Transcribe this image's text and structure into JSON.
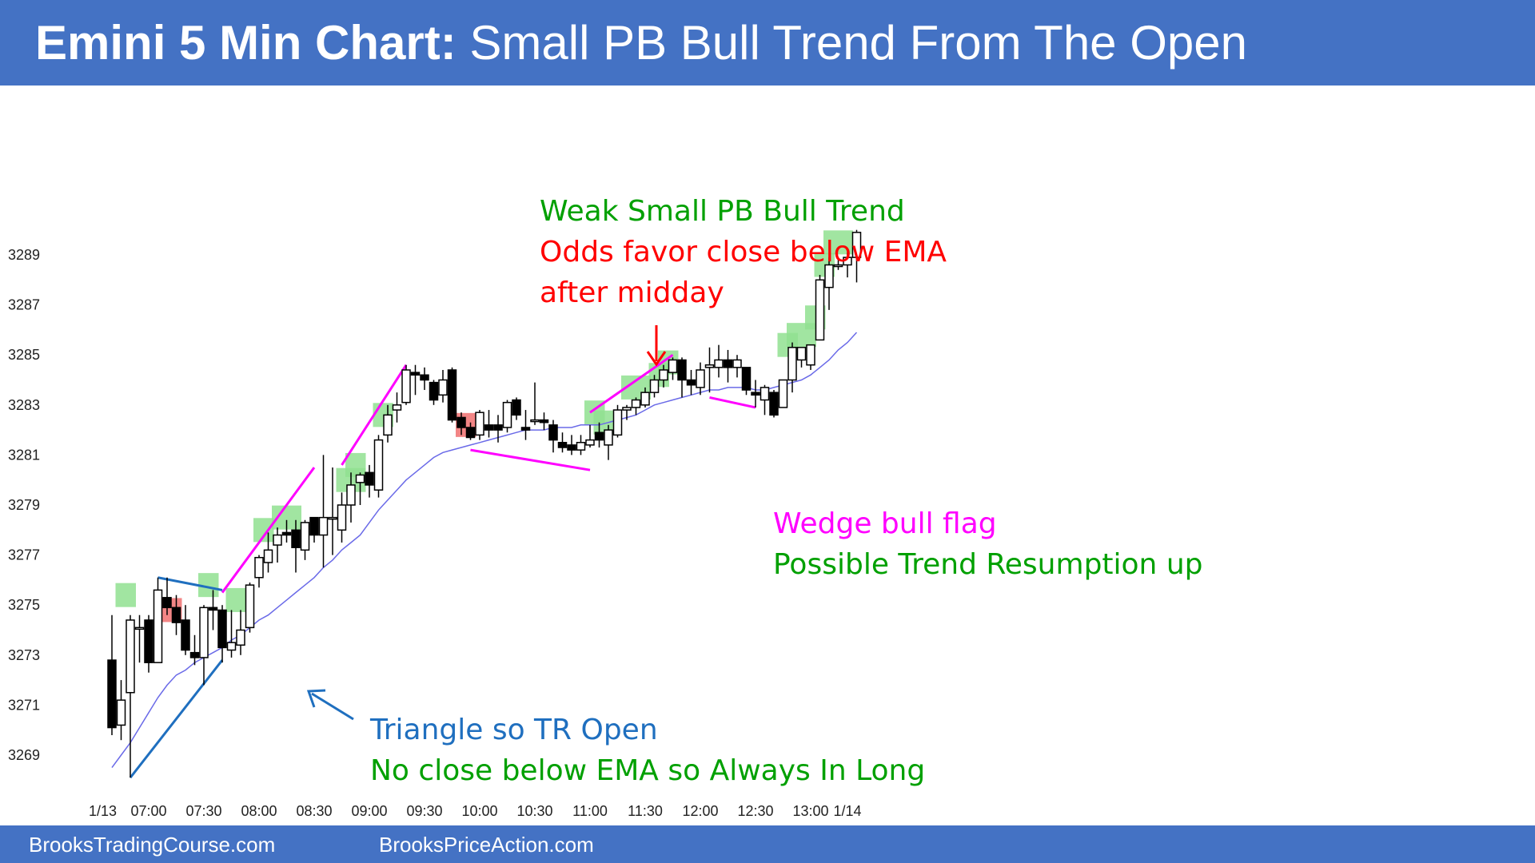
{
  "header": {
    "title_bold": "Emini 5 Min Chart:",
    "title_rest": "Small PB Bull Trend From The Open"
  },
  "footer": {
    "link1": "BrooksTradingCourse.com",
    "link2": "BrooksPriceAction.com"
  },
  "colors": {
    "bar_blue": "#4472c4",
    "bull_trend_text": "#00a000",
    "warn_text": "#ff0000",
    "wedge": "#ff00ff",
    "triangle": "#1f6fbf",
    "ema": "#6a6ae8",
    "green_box": "#90e090",
    "red_box": "#f07070"
  },
  "chart_data": {
    "type": "candlestick",
    "title": "Emini 5 Min Chart: Small PB Bull Trend From The Open",
    "xlabel": "",
    "ylabel": "",
    "x_tick_labels": [
      "1/13",
      "07:00",
      "07:30",
      "08:00",
      "08:30",
      "09:00",
      "09:30",
      "10:00",
      "10:30",
      "11:00",
      "11:30",
      "12:00",
      "12:30",
      "13:00",
      "1/14"
    ],
    "x_tick_bar_index": [
      -1,
      4,
      10,
      16,
      22,
      28,
      34,
      40,
      46,
      52,
      58,
      64,
      70,
      76,
      80
    ],
    "y_ticks": [
      3269,
      3271,
      3273,
      3275,
      3277,
      3279,
      3281,
      3283,
      3285,
      3287,
      3289
    ],
    "ylim": [
      3267.5,
      3290.5
    ],
    "grid": false,
    "bars": [
      {
        "o": 3272.8,
        "h": 3274.6,
        "l": 3269.8,
        "c": 3270.1
      },
      {
        "o": 3270.2,
        "h": 3272.0,
        "l": 3269.6,
        "c": 3271.2
      },
      {
        "o": 3271.5,
        "h": 3274.6,
        "l": 3268.1,
        "c": 3274.4
      },
      {
        "o": 3274.1,
        "h": 3274.6,
        "l": 3272.7,
        "c": 3274.1
      },
      {
        "o": 3274.4,
        "h": 3274.6,
        "l": 3272.3,
        "c": 3272.7
      },
      {
        "o": 3272.7,
        "h": 3276.1,
        "l": 3272.7,
        "c": 3275.6
      },
      {
        "o": 3275.3,
        "h": 3276.1,
        "l": 3274.6,
        "c": 3274.9
      },
      {
        "o": 3274.9,
        "h": 3275.4,
        "l": 3273.8,
        "c": 3274.3
      },
      {
        "o": 3274.4,
        "h": 3275.0,
        "l": 3273.0,
        "c": 3273.2
      },
      {
        "o": 3273.1,
        "h": 3273.8,
        "l": 3272.6,
        "c": 3272.9
      },
      {
        "o": 3272.9,
        "h": 3275.0,
        "l": 3271.8,
        "c": 3274.9
      },
      {
        "o": 3274.9,
        "h": 3275.6,
        "l": 3274.0,
        "c": 3274.8
      },
      {
        "o": 3274.8,
        "h": 3275.0,
        "l": 3272.7,
        "c": 3273.3
      },
      {
        "o": 3273.2,
        "h": 3274.8,
        "l": 3272.9,
        "c": 3273.5
      },
      {
        "o": 3273.4,
        "h": 3274.8,
        "l": 3273.0,
        "c": 3274.0
      },
      {
        "o": 3274.1,
        "h": 3275.9,
        "l": 3273.9,
        "c": 3275.8
      },
      {
        "o": 3276.1,
        "h": 3277.0,
        "l": 3275.7,
        "c": 3276.9
      },
      {
        "o": 3276.7,
        "h": 3277.9,
        "l": 3276.3,
        "c": 3277.2
      },
      {
        "o": 3277.4,
        "h": 3278.1,
        "l": 3276.7,
        "c": 3277.8
      },
      {
        "o": 3277.9,
        "h": 3278.4,
        "l": 3277.5,
        "c": 3277.8
      },
      {
        "o": 3278.0,
        "h": 3278.4,
        "l": 3276.3,
        "c": 3277.3
      },
      {
        "o": 3277.2,
        "h": 3278.4,
        "l": 3276.8,
        "c": 3278.3
      },
      {
        "o": 3278.5,
        "h": 3278.5,
        "l": 3277.5,
        "c": 3277.8
      },
      {
        "o": 3277.8,
        "h": 3281.0,
        "l": 3276.5,
        "c": 3278.5
      },
      {
        "o": 3278.5,
        "h": 3280.5,
        "l": 3277.0,
        "c": 3278.5
      },
      {
        "o": 3278.0,
        "h": 3279.5,
        "l": 3277.5,
        "c": 3279.0
      },
      {
        "o": 3279.0,
        "h": 3280.3,
        "l": 3278.3,
        "c": 3279.8
      },
      {
        "o": 3279.9,
        "h": 3280.3,
        "l": 3279.0,
        "c": 3280.2
      },
      {
        "o": 3280.3,
        "h": 3280.6,
        "l": 3279.3,
        "c": 3279.8
      },
      {
        "o": 3279.6,
        "h": 3281.8,
        "l": 3279.3,
        "c": 3281.6
      },
      {
        "o": 3281.8,
        "h": 3283.0,
        "l": 3281.5,
        "c": 3282.6
      },
      {
        "o": 3282.8,
        "h": 3283.5,
        "l": 3282.3,
        "c": 3283.0
      },
      {
        "o": 3283.1,
        "h": 3284.6,
        "l": 3283.0,
        "c": 3284.4
      },
      {
        "o": 3284.3,
        "h": 3284.6,
        "l": 3283.4,
        "c": 3284.2
      },
      {
        "o": 3284.2,
        "h": 3284.5,
        "l": 3283.6,
        "c": 3284.0
      },
      {
        "o": 3283.9,
        "h": 3284.0,
        "l": 3283.0,
        "c": 3283.2
      },
      {
        "o": 3283.4,
        "h": 3284.4,
        "l": 3283.1,
        "c": 3284.0
      },
      {
        "o": 3284.4,
        "h": 3284.5,
        "l": 3282.3,
        "c": 3282.4
      },
      {
        "o": 3282.5,
        "h": 3282.7,
        "l": 3281.8,
        "c": 3282.1
      },
      {
        "o": 3282.1,
        "h": 3282.3,
        "l": 3281.6,
        "c": 3281.7
      },
      {
        "o": 3281.8,
        "h": 3282.8,
        "l": 3281.6,
        "c": 3282.7
      },
      {
        "o": 3282.2,
        "h": 3282.8,
        "l": 3281.7,
        "c": 3282.0
      },
      {
        "o": 3282.2,
        "h": 3282.6,
        "l": 3281.5,
        "c": 3282.0
      },
      {
        "o": 3282.1,
        "h": 3283.2,
        "l": 3281.9,
        "c": 3283.1
      },
      {
        "o": 3283.2,
        "h": 3283.3,
        "l": 3282.4,
        "c": 3282.6
      },
      {
        "o": 3282.1,
        "h": 3282.8,
        "l": 3281.6,
        "c": 3282.0
      },
      {
        "o": 3282.4,
        "h": 3283.9,
        "l": 3282.2,
        "c": 3282.4
      },
      {
        "o": 3282.4,
        "h": 3282.7,
        "l": 3282.0,
        "c": 3282.3
      },
      {
        "o": 3282.2,
        "h": 3282.4,
        "l": 3281.1,
        "c": 3281.6
      },
      {
        "o": 3281.5,
        "h": 3281.9,
        "l": 3281.1,
        "c": 3281.3
      },
      {
        "o": 3281.4,
        "h": 3281.8,
        "l": 3281.0,
        "c": 3281.2
      },
      {
        "o": 3281.2,
        "h": 3281.8,
        "l": 3281.0,
        "c": 3281.5
      },
      {
        "o": 3281.4,
        "h": 3282.2,
        "l": 3281.3,
        "c": 3281.6
      },
      {
        "o": 3281.9,
        "h": 3282.3,
        "l": 3281.3,
        "c": 3281.6
      },
      {
        "o": 3281.4,
        "h": 3282.2,
        "l": 3280.8,
        "c": 3282.0
      },
      {
        "o": 3281.8,
        "h": 3283.0,
        "l": 3281.7,
        "c": 3282.8
      },
      {
        "o": 3282.8,
        "h": 3283.0,
        "l": 3282.4,
        "c": 3282.9
      },
      {
        "o": 3282.9,
        "h": 3283.3,
        "l": 3282.6,
        "c": 3283.2
      },
      {
        "o": 3283.0,
        "h": 3283.7,
        "l": 3282.9,
        "c": 3283.5
      },
      {
        "o": 3283.5,
        "h": 3284.2,
        "l": 3283.3,
        "c": 3284.0
      },
      {
        "o": 3284.0,
        "h": 3284.6,
        "l": 3283.7,
        "c": 3284.4
      },
      {
        "o": 3284.3,
        "h": 3284.9,
        "l": 3284.0,
        "c": 3284.8
      },
      {
        "o": 3284.8,
        "h": 3284.9,
        "l": 3283.3,
        "c": 3284.0
      },
      {
        "o": 3284.0,
        "h": 3284.4,
        "l": 3283.4,
        "c": 3283.8
      },
      {
        "o": 3283.7,
        "h": 3284.7,
        "l": 3283.4,
        "c": 3284.4
      },
      {
        "o": 3284.5,
        "h": 3285.3,
        "l": 3283.5,
        "c": 3284.6
      },
      {
        "o": 3284.5,
        "h": 3285.4,
        "l": 3284.1,
        "c": 3284.8
      },
      {
        "o": 3284.8,
        "h": 3285.2,
        "l": 3283.9,
        "c": 3284.5
      },
      {
        "o": 3284.5,
        "h": 3285.0,
        "l": 3284.1,
        "c": 3284.8
      },
      {
        "o": 3284.5,
        "h": 3284.5,
        "l": 3283.4,
        "c": 3283.6
      },
      {
        "o": 3283.5,
        "h": 3284.0,
        "l": 3282.9,
        "c": 3283.4
      },
      {
        "o": 3283.2,
        "h": 3283.8,
        "l": 3282.6,
        "c": 3283.7
      },
      {
        "o": 3283.5,
        "h": 3283.6,
        "l": 3282.5,
        "c": 3282.6
      },
      {
        "o": 3282.9,
        "h": 3284.0,
        "l": 3282.9,
        "c": 3284.0
      },
      {
        "o": 3284.0,
        "h": 3285.5,
        "l": 3283.5,
        "c": 3285.3
      },
      {
        "o": 3284.8,
        "h": 3285.3,
        "l": 3284.5,
        "c": 3285.3
      },
      {
        "o": 3284.6,
        "h": 3285.4,
        "l": 3284.4,
        "c": 3285.4
      },
      {
        "o": 3285.6,
        "h": 3288.2,
        "l": 3285.6,
        "c": 3288.0
      },
      {
        "o": 3287.7,
        "h": 3288.9,
        "l": 3286.8,
        "c": 3288.6
      },
      {
        "o": 3288.6,
        "h": 3288.8,
        "l": 3288.4,
        "c": 3288.6
      },
      {
        "o": 3288.6,
        "h": 3289.1,
        "l": 3288.1,
        "c": 3288.9
      },
      {
        "o": 3288.9,
        "h": 3290.0,
        "l": 3287.9,
        "c": 3289.9
      }
    ],
    "ema": [
      3268.5,
      3269.0,
      3269.5,
      3270.1,
      3270.7,
      3271.3,
      3271.8,
      3272.2,
      3272.4,
      3272.7,
      3272.9,
      3273.1,
      3273.3,
      3273.6,
      3273.8,
      3274.1,
      3274.4,
      3274.6,
      3274.9,
      3275.2,
      3275.5,
      3275.8,
      3276.1,
      3276.5,
      3276.8,
      3277.2,
      3277.5,
      3277.8,
      3278.3,
      3278.8,
      3279.2,
      3279.6,
      3280.0,
      3280.3,
      3280.6,
      3280.9,
      3281.1,
      3281.2,
      3281.3,
      3281.4,
      3281.5,
      3281.6,
      3281.7,
      3281.8,
      3281.9,
      3282.0,
      3282.0,
      3282.0,
      3282.1,
      3282.1,
      3282.1,
      3282.2,
      3282.2,
      3282.2,
      3282.3,
      3282.4,
      3282.5,
      3282.6,
      3282.8,
      3283.0,
      3283.1,
      3283.2,
      3283.3,
      3283.4,
      3283.5,
      3283.6,
      3283.6,
      3283.7,
      3283.7,
      3283.7,
      3283.6,
      3283.6,
      3283.7,
      3283.8,
      3283.9,
      3284.0,
      3284.2,
      3284.5,
      3284.8,
      3285.2,
      3285.5,
      3285.9
    ],
    "green_boxes": [
      [
        1,
        2,
        3275.4
      ],
      [
        10,
        11,
        3275.8
      ],
      [
        13,
        14,
        3275.2
      ],
      [
        16,
        17,
        3278.0
      ],
      [
        18,
        20,
        3278.5
      ],
      [
        25,
        27,
        3280.0
      ],
      [
        26,
        27,
        3280.6
      ],
      [
        29,
        30,
        3282.6
      ],
      [
        52,
        53,
        3282.7
      ],
      [
        53,
        54,
        3282.3
      ],
      [
        56,
        58,
        3283.7
      ],
      [
        59,
        60,
        3284.2
      ],
      [
        60,
        61,
        3284.7
      ],
      [
        73,
        74,
        3285.4
      ],
      [
        74,
        76,
        3285.8
      ],
      [
        76,
        77,
        3286.5
      ],
      [
        77,
        78,
        3288.6
      ],
      [
        78,
        80,
        3289.5
      ]
    ],
    "red_boxes": [
      [
        6,
        7,
        3274.8
      ],
      [
        38,
        39,
        3282.2
      ]
    ],
    "annotations": [
      {
        "text": "Weak Small PB Bull Trend",
        "color": "green"
      },
      {
        "text": "Odds favor close below EMA",
        "color": "red"
      },
      {
        "text": "after midday",
        "color": "red"
      },
      {
        "text": "Wedge bull flag",
        "color": "magenta"
      },
      {
        "text": "Possible Trend Resumption up",
        "color": "green"
      },
      {
        "text": "Triangle so TR Open",
        "color": "blue"
      },
      {
        "text": "No close below EMA so Always In Long",
        "color": "green"
      }
    ],
    "lines": {
      "wedge_1": [
        [
          12,
          3275.5
        ],
        [
          22,
          3280.5
        ]
      ],
      "wedge_2": [
        [
          25,
          3280.6
        ],
        [
          32,
          3284.6
        ]
      ],
      "wedge_bottom": [
        [
          39,
          3281.2
        ],
        [
          52,
          3280.4
        ]
      ],
      "wedge_3": [
        [
          52,
          3282.7
        ],
        [
          61,
          3285.0
        ]
      ],
      "flag_2": [
        [
          65,
          3283.3
        ],
        [
          70,
          3282.9
        ]
      ],
      "triangle_top": [
        [
          5,
          3276.1
        ],
        [
          12,
          3275.6
        ]
      ],
      "triangle_bottom": [
        [
          2,
          3268.1
        ],
        [
          12,
          3272.8
        ]
      ]
    }
  }
}
